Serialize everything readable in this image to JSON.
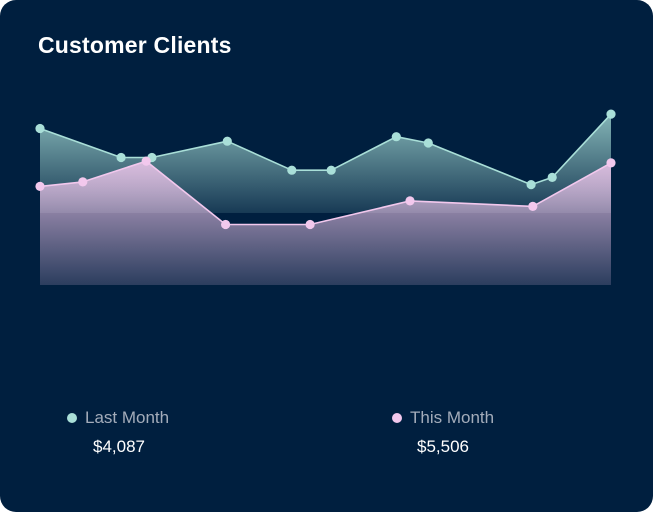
{
  "card": {
    "title": "Customer Clients"
  },
  "colors": {
    "background": "#001f3f",
    "last_month": "#a9dfd8",
    "this_month": "#f2c8ed"
  },
  "legend": {
    "last_month": {
      "label": "Last Month",
      "value": "$4,087"
    },
    "this_month": {
      "label": "This Month",
      "value": "$5,506"
    }
  },
  "chart_data": {
    "type": "area",
    "title": "Customer Clients",
    "xlabel": "",
    "ylabel": "",
    "grid": false,
    "legend_position": "bottom",
    "xlim": [
      0,
      100
    ],
    "ylim": [
      0,
      100
    ],
    "series": [
      {
        "name": "Last Month",
        "color": "#a9dfd8",
        "x": [
          0,
          14.2,
          19.6,
          32.8,
          44.1,
          51.0,
          62.4,
          68.0,
          86.0,
          89.7,
          100
        ],
        "y": [
          87,
          71,
          71,
          80,
          64,
          64,
          82.5,
          79,
          56,
          60,
          95
        ]
      },
      {
        "name": "This Month",
        "color": "#f2c8ed",
        "x": [
          0,
          7.5,
          18.6,
          32.5,
          47.3,
          64.8,
          86.3,
          100
        ],
        "y": [
          55,
          57.5,
          69,
          34,
          34,
          47,
          44,
          68
        ]
      }
    ]
  }
}
